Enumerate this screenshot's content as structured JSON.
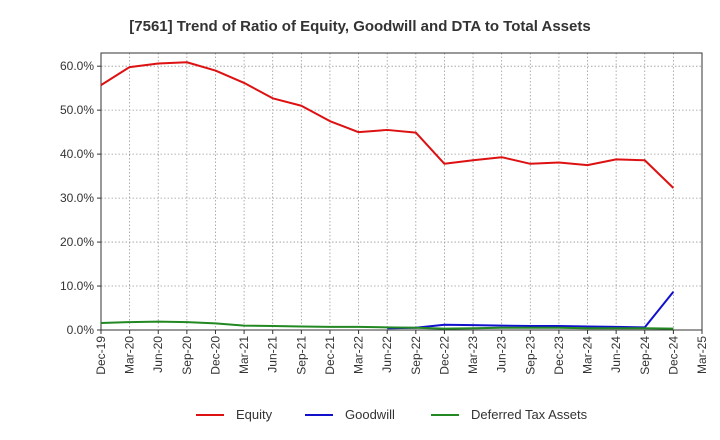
{
  "chart_data": {
    "type": "line",
    "title": "[7561]  Trend of Ratio of Equity, Goodwill and DTA to Total Assets",
    "xlabel": "",
    "ylabel": "",
    "ylim": [
      0,
      63
    ],
    "y_ticks": [
      0,
      10,
      20,
      30,
      40,
      50,
      60
    ],
    "y_tick_labels": [
      "0.0%",
      "10.0%",
      "20.0%",
      "30.0%",
      "40.0%",
      "50.0%",
      "60.0%"
    ],
    "x_tick_labels": [
      "Dec-19",
      "Mar-20",
      "Jun-20",
      "Sep-20",
      "Dec-20",
      "Mar-21",
      "Jun-21",
      "Sep-21",
      "Dec-21",
      "Mar-22",
      "Jun-22",
      "Sep-22",
      "Dec-22",
      "Mar-23",
      "Jun-23",
      "Sep-23",
      "Dec-23",
      "Mar-24",
      "Jun-24",
      "Sep-24",
      "Dec-24",
      "Mar-25"
    ],
    "grid": true,
    "legend_position": "bottom",
    "series": [
      {
        "name": "Equity",
        "color": "#dd1111",
        "values": [
          55.7,
          59.8,
          60.6,
          60.9,
          59.0,
          56.2,
          52.7,
          51.0,
          47.5,
          45.0,
          45.5,
          44.9,
          37.8,
          38.6,
          39.3,
          37.8,
          38.1,
          37.5,
          38.8,
          38.6,
          32.3,
          null
        ]
      },
      {
        "name": "Goodwill",
        "color": "#1111cc",
        "values": [
          null,
          null,
          null,
          null,
          null,
          null,
          null,
          null,
          null,
          null,
          0.4,
          0.5,
          1.2,
          1.1,
          1.0,
          0.9,
          0.9,
          0.8,
          0.7,
          0.6,
          8.7,
          null
        ]
      },
      {
        "name": "Deferred Tax Assets",
        "color": "#228822",
        "values": [
          1.6,
          1.8,
          1.9,
          1.8,
          1.5,
          1.0,
          0.9,
          0.8,
          0.7,
          0.7,
          0.6,
          0.5,
          0.3,
          0.4,
          0.5,
          0.5,
          0.5,
          0.4,
          0.4,
          0.4,
          0.3,
          null
        ]
      }
    ]
  }
}
